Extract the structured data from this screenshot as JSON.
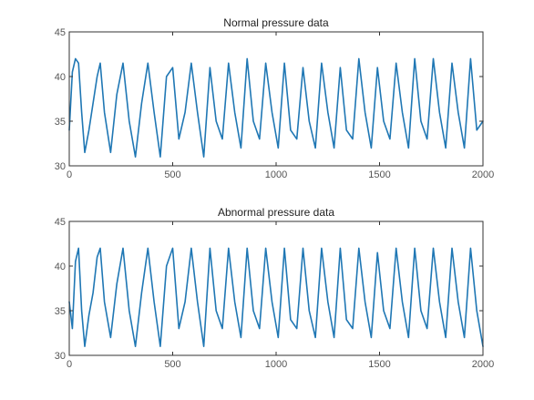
{
  "chart_data": [
    {
      "type": "line",
      "title": "Normal pressure data",
      "xlabel": "",
      "ylabel": "",
      "xlim": [
        0,
        2000
      ],
      "ylim": [
        30,
        45
      ],
      "xticks": [
        0,
        500,
        1000,
        1500,
        2000
      ],
      "yticks": [
        30,
        35,
        40,
        45
      ],
      "xtick_labels": [
        "0",
        "500",
        "1000",
        "1500",
        "2000"
      ],
      "ytick_labels": [
        "30",
        "35",
        "40",
        "45"
      ],
      "grid": false,
      "color": "#1f77b4",
      "series": [
        {
          "x": [
            0,
            15,
            30,
            45,
            60,
            75,
            95,
            115,
            135,
            150,
            170,
            200,
            230,
            260,
            290,
            320,
            350,
            380,
            410,
            440,
            470,
            500,
            530,
            560,
            590,
            620,
            650,
            680,
            710,
            740,
            770,
            800,
            830,
            860,
            890,
            920,
            950,
            980,
            1010,
            1040,
            1070,
            1100,
            1130,
            1160,
            1190,
            1220,
            1250,
            1280,
            1310,
            1340,
            1370,
            1400,
            1430,
            1460,
            1490,
            1520,
            1550,
            1580,
            1610,
            1640,
            1670,
            1700,
            1730,
            1760,
            1790,
            1820,
            1850,
            1880,
            1910,
            1940,
            1970,
            2000
          ],
          "y": [
            34,
            40.5,
            42,
            41.5,
            36,
            31.5,
            34,
            37,
            40,
            41.5,
            36,
            31.5,
            38,
            41.5,
            35,
            31,
            37,
            41.5,
            36,
            31,
            40,
            41,
            33,
            36,
            41.5,
            36,
            31,
            41,
            35,
            33,
            41.5,
            36,
            32,
            42,
            35,
            33,
            41.5,
            36,
            32,
            41.5,
            34,
            33,
            41,
            35,
            32,
            41.5,
            36,
            32,
            41,
            34,
            33,
            42,
            36,
            32,
            41,
            35,
            33,
            41.5,
            36,
            32,
            42,
            35,
            33,
            42,
            36,
            32,
            41.5,
            36,
            32,
            42,
            34,
            35
          ]
        }
      ]
    },
    {
      "type": "line",
      "title": "Abnormal pressure data",
      "xlabel": "",
      "ylabel": "",
      "xlim": [
        0,
        2000
      ],
      "ylim": [
        30,
        45
      ],
      "xticks": [
        0,
        500,
        1000,
        1500,
        2000
      ],
      "yticks": [
        30,
        35,
        40,
        45
      ],
      "xtick_labels": [
        "0",
        "500",
        "1000",
        "1500",
        "2000"
      ],
      "ytick_labels": [
        "30",
        "35",
        "40",
        "45"
      ],
      "grid": false,
      "color": "#1f77b4",
      "series": [
        {
          "x": [
            0,
            15,
            30,
            45,
            60,
            75,
            95,
            115,
            135,
            150,
            170,
            200,
            230,
            260,
            290,
            320,
            350,
            380,
            410,
            440,
            470,
            500,
            530,
            560,
            590,
            620,
            650,
            680,
            710,
            740,
            770,
            800,
            830,
            860,
            890,
            920,
            950,
            980,
            1010,
            1040,
            1070,
            1100,
            1130,
            1160,
            1190,
            1220,
            1250,
            1280,
            1310,
            1340,
            1370,
            1400,
            1430,
            1460,
            1490,
            1520,
            1550,
            1580,
            1610,
            1640,
            1670,
            1700,
            1730,
            1760,
            1790,
            1820,
            1850,
            1880,
            1910,
            1940,
            1970,
            2000
          ],
          "y": [
            36,
            33,
            40.5,
            42,
            35,
            31,
            34.5,
            37,
            41,
            42,
            36,
            32,
            38,
            42,
            35,
            31,
            37,
            42,
            36,
            31,
            40,
            42,
            33,
            36,
            42,
            36,
            31,
            42,
            35,
            33,
            42,
            36,
            32,
            42,
            35,
            33,
            42,
            36,
            32,
            42,
            34,
            33,
            42,
            35,
            32,
            42,
            36,
            32,
            42,
            34,
            33,
            42,
            36,
            32,
            41.5,
            35,
            33,
            42,
            36,
            32,
            42,
            35,
            33,
            42,
            36,
            32,
            42,
            36,
            32,
            42,
            35,
            31
          ]
        }
      ]
    }
  ]
}
